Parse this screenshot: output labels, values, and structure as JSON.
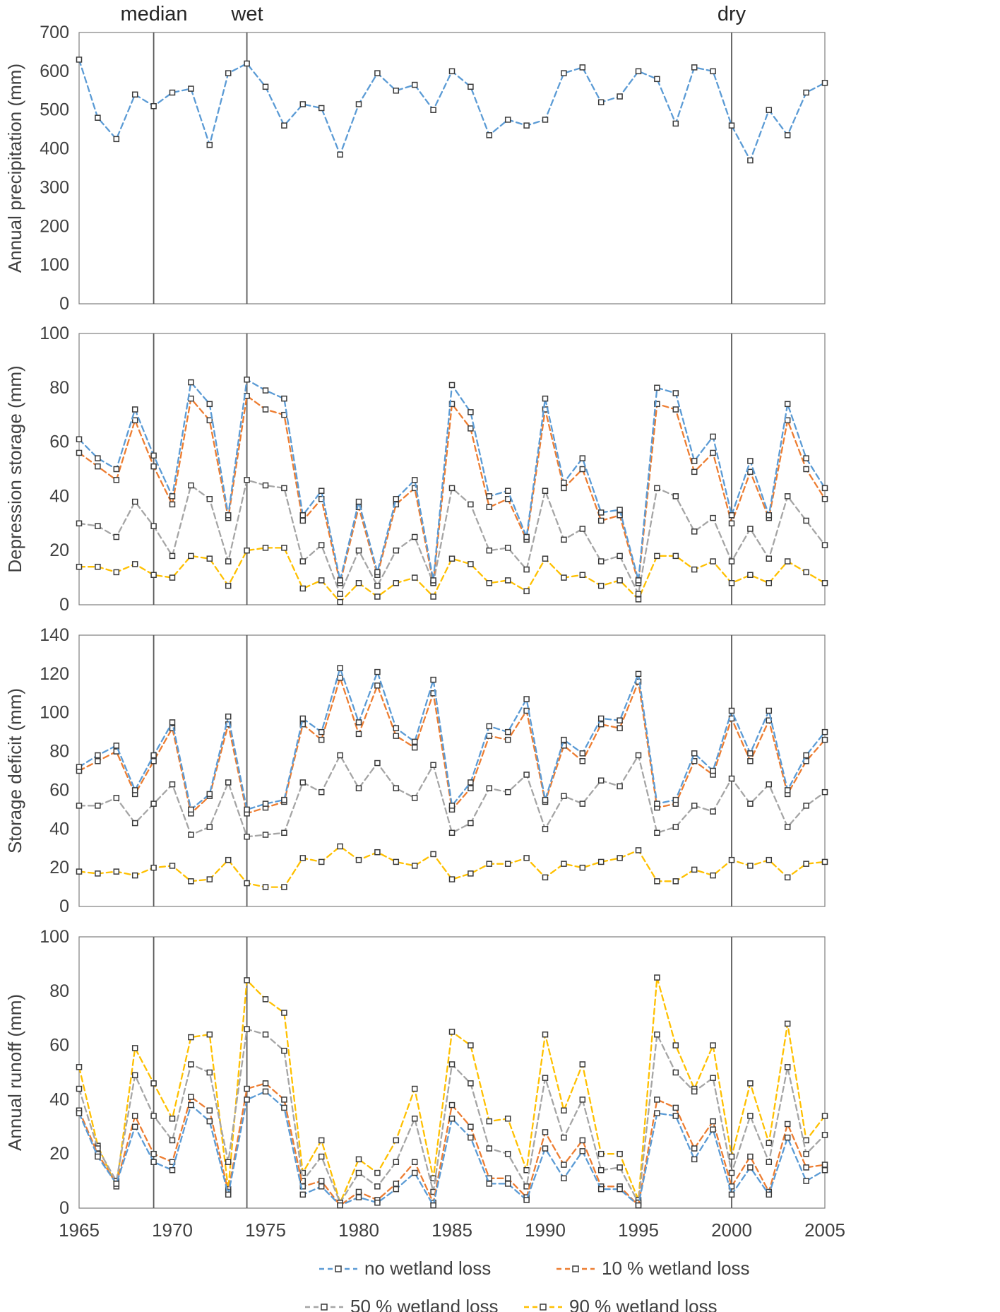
{
  "chart_data": {
    "type": "line",
    "x": {
      "start": 1965,
      "end": 2005,
      "ticks": [
        1965,
        1970,
        1975,
        1980,
        1985,
        1990,
        1995,
        2000,
        2005
      ]
    },
    "annotations": [
      {
        "label": "median",
        "year": 1969
      },
      {
        "label": "wet",
        "year": 1974
      },
      {
        "label": "dry",
        "year": 2000
      }
    ],
    "legend": [
      {
        "label": "no wetland loss",
        "color": "#5B9BD5"
      },
      {
        "label": "10 % wetland loss",
        "color": "#ED7D31"
      },
      {
        "label": "50 % wetland loss",
        "color": "#A5A5A5"
      },
      {
        "label": "90 % wetland loss",
        "color": "#FFC000"
      }
    ],
    "panels": [
      {
        "ylabel": "Annual precipitation (mm)",
        "ylim": [
          0,
          700
        ],
        "ytick": 100,
        "series": [
          {
            "name": "precipitation",
            "color": "#5B9BD5",
            "values": [
              630,
              480,
              425,
              540,
              510,
              545,
              555,
              410,
              595,
              620,
              560,
              460,
              515,
              505,
              385,
              515,
              595,
              550,
              565,
              500,
              600,
              560,
              435,
              475,
              460,
              475,
              595,
              610,
              520,
              535,
              600,
              580,
              465,
              610,
              600,
              460,
              370,
              500,
              435,
              545,
              570
            ]
          }
        ]
      },
      {
        "ylabel": "Depression storage (mm)",
        "ylim": [
          0,
          100
        ],
        "ytick": 20,
        "series": [
          {
            "name": "no wetland loss",
            "color": "#5B9BD5",
            "values": [
              61,
              54,
              50,
              72,
              55,
              40,
              82,
              74,
              33,
              83,
              79,
              76,
              33,
              42,
              9,
              38,
              12,
              39,
              46,
              9,
              81,
              71,
              40,
              42,
              25,
              76,
              45,
              54,
              34,
              35,
              9,
              80,
              78,
              53,
              62,
              33,
              53,
              33,
              74,
              54,
              43
            ]
          },
          {
            "name": "10 % wetland loss",
            "color": "#ED7D31",
            "values": [
              56,
              51,
              46,
              68,
              51,
              37,
              76,
              68,
              32,
              77,
              72,
              70,
              31,
              39,
              8,
              36,
              11,
              37,
              43,
              8,
              74,
              65,
              36,
              39,
              24,
              72,
              43,
              50,
              31,
              33,
              8,
              74,
              72,
              49,
              56,
              30,
              49,
              32,
              68,
              50,
              39
            ]
          },
          {
            "name": "50 % wetland loss",
            "color": "#A5A5A5",
            "values": [
              30,
              29,
              25,
              38,
              29,
              18,
              44,
              39,
              16,
              46,
              44,
              43,
              16,
              22,
              4,
              20,
              7,
              20,
              25,
              8,
              43,
              37,
              20,
              21,
              13,
              42,
              24,
              28,
              16,
              18,
              4,
              43,
              40,
              27,
              32,
              16,
              28,
              17,
              40,
              31,
              22
            ]
          },
          {
            "name": "90 % wetland loss",
            "color": "#FFC000",
            "values": [
              14,
              14,
              12,
              15,
              11,
              10,
              18,
              17,
              7,
              20,
              21,
              21,
              6,
              9,
              1,
              8,
              3,
              8,
              10,
              3,
              17,
              15,
              8,
              9,
              5,
              17,
              10,
              11,
              7,
              9,
              2,
              18,
              18,
              13,
              16,
              8,
              11,
              8,
              16,
              12,
              8
            ]
          }
        ]
      },
      {
        "ylabel": "Storage deficit (mm)",
        "ylim": [
          0,
          140
        ],
        "ytick": 20,
        "series": [
          {
            "name": "no wetland loss",
            "color": "#5B9BD5",
            "values": [
              72,
              78,
              83,
              60,
              78,
              95,
              50,
              58,
              98,
              50,
              53,
              55,
              97,
              90,
              123,
              95,
              121,
              92,
              85,
              117,
              52,
              64,
              93,
              90,
              107,
              55,
              86,
              79,
              97,
              96,
              120,
              53,
              55,
              79,
              70,
              101,
              79,
              101,
              60,
              78,
              90
            ]
          },
          {
            "name": "10 % wetland loss",
            "color": "#ED7D31",
            "values": [
              70,
              75,
              80,
              58,
              75,
              92,
              48,
              57,
              94,
              48,
              51,
              54,
              94,
              86,
              118,
              89,
              114,
              88,
              82,
              110,
              50,
              61,
              88,
              86,
              101,
              54,
              83,
              75,
              94,
              92,
              116,
              51,
              53,
              75,
              68,
              97,
              75,
              96,
              58,
              75,
              86
            ]
          },
          {
            "name": "50 % wetland loss",
            "color": "#A5A5A5",
            "values": [
              52,
              52,
              56,
              43,
              53,
              63,
              37,
              41,
              64,
              36,
              37,
              38,
              64,
              59,
              78,
              61,
              74,
              61,
              56,
              73,
              38,
              43,
              61,
              59,
              68,
              40,
              57,
              53,
              65,
              62,
              78,
              38,
              41,
              52,
              49,
              66,
              53,
              63,
              41,
              52,
              59
            ]
          },
          {
            "name": "90 % wetland loss",
            "color": "#FFC000",
            "values": [
              18,
              17,
              18,
              16,
              20,
              21,
              13,
              14,
              24,
              12,
              10,
              10,
              25,
              23,
              31,
              24,
              28,
              23,
              21,
              27,
              14,
              17,
              22,
              22,
              25,
              15,
              22,
              20,
              23,
              25,
              29,
              13,
              13,
              19,
              16,
              24,
              21,
              24,
              15,
              22,
              23
            ]
          }
        ]
      },
      {
        "ylabel": "Annual runoff (mm)",
        "ylim": [
          0,
          100
        ],
        "ytick": 20,
        "series": [
          {
            "name": "no wetland loss",
            "color": "#5B9BD5",
            "values": [
              35,
              19,
              9,
              30,
              17,
              14,
              38,
              32,
              5,
              40,
              43,
              37,
              5,
              8,
              1,
              4,
              2,
              7,
              13,
              1,
              33,
              26,
              9,
              9,
              3,
              22,
              11,
              21,
              7,
              7,
              1,
              35,
              34,
              18,
              29,
              5,
              15,
              5,
              26,
              10,
              14
            ]
          },
          {
            "name": "10 % wetland loss",
            "color": "#ED7D31",
            "values": [
              36,
              20,
              9,
              34,
              20,
              17,
              41,
              36,
              6,
              44,
              46,
              40,
              8,
              10,
              1,
              6,
              3,
              9,
              17,
              2,
              38,
              30,
              11,
              11,
              4,
              28,
              16,
              25,
              8,
              8,
              1,
              40,
              37,
              22,
              32,
              8,
              19,
              6,
              31,
              15,
              16
            ]
          },
          {
            "name": "50 % wetland loss",
            "color": "#A5A5A5",
            "values": [
              44,
              22,
              10,
              49,
              34,
              25,
              53,
              50,
              17,
              66,
              64,
              58,
              10,
              19,
              2,
              13,
              8,
              17,
              33,
              6,
              53,
              46,
              22,
              20,
              8,
              48,
              26,
              40,
              14,
              15,
              2,
              64,
              50,
              43,
              48,
              13,
              34,
              17,
              52,
              20,
              27
            ]
          },
          {
            "name": "90 % wetland loss",
            "color": "#FFC000",
            "values": [
              52,
              23,
              8,
              59,
              46,
              33,
              63,
              64,
              7,
              84,
              77,
              72,
              13,
              25,
              2,
              18,
              13,
              25,
              44,
              11,
              65,
              60,
              32,
              33,
              14,
              64,
              36,
              53,
              20,
              20,
              3,
              85,
              60,
              44,
              60,
              19,
              46,
              24,
              68,
              25,
              34
            ]
          }
        ]
      }
    ],
    "style": {
      "axis_color": "#7F7F7F",
      "event_line_color": "#595959",
      "tick_label_color": "#404040",
      "marker_stroke": "#3A3A3A",
      "marker_fill": "#FFFFFF"
    }
  }
}
